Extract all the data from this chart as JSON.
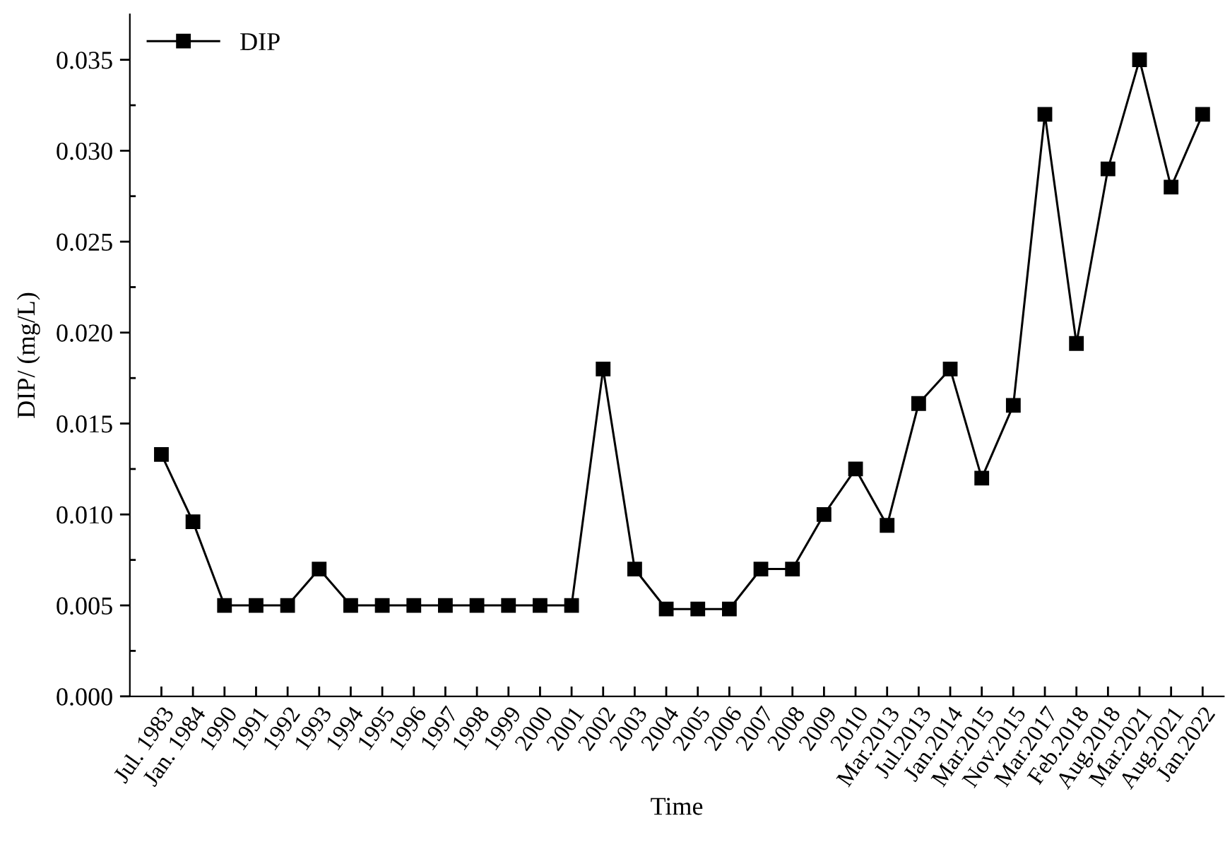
{
  "chart_data": {
    "type": "line",
    "xlabel": "Time",
    "ylabel": "DIP/ (mg/L)",
    "categories": [
      "Jul. 1983",
      "Jan. 1984",
      "1990",
      "1991",
      "1992",
      "1993",
      "1994",
      "1995",
      "1996",
      "1997",
      "1998",
      "1999",
      "2000",
      "2001",
      "2002",
      "2003",
      "2004",
      "2005",
      "2006",
      "2007",
      "2008",
      "2009",
      "2010",
      "Mar.2013",
      "Jul.2013",
      "Jan.2014",
      "Mar.2015",
      "Nov.2015",
      "Mar.2017",
      "Feb.2018",
      "Aug.2018",
      "Mar.2021",
      "Aug.2021",
      "Jan.2022"
    ],
    "series": [
      {
        "name": "DIP",
        "color": "#000000",
        "values": [
          0.0133,
          0.0096,
          0.005,
          0.005,
          0.005,
          0.007,
          0.005,
          0.005,
          0.005,
          0.005,
          0.005,
          0.005,
          0.005,
          0.005,
          0.018,
          0.007,
          0.0048,
          0.0048,
          0.0048,
          0.007,
          0.007,
          0.01,
          0.0125,
          0.0094,
          0.0161,
          0.018,
          0.012,
          0.016,
          0.032,
          0.0194,
          0.029,
          0.035,
          0.028,
          0.032
        ]
      }
    ],
    "ylim": [
      0,
      0.0375
    ],
    "yticks": [
      {
        "value": 0,
        "label": "0.000"
      },
      {
        "value": 0.0025,
        "label": null
      },
      {
        "value": 0.005,
        "label": "0.005"
      },
      {
        "value": 0.0075,
        "label": null
      },
      {
        "value": 0.01,
        "label": "0.010"
      },
      {
        "value": 0.0125,
        "label": null
      },
      {
        "value": 0.015,
        "label": "0.015"
      },
      {
        "value": 0.0175,
        "label": null
      },
      {
        "value": 0.02,
        "label": "0.020"
      },
      {
        "value": 0.0225,
        "label": null
      },
      {
        "value": 0.025,
        "label": "0.025"
      },
      {
        "value": 0.0275,
        "label": null
      },
      {
        "value": 0.03,
        "label": "0.030"
      },
      {
        "value": 0.0325,
        "label": null
      },
      {
        "value": 0.035,
        "label": "0.035"
      }
    ],
    "marker": "square",
    "line_style": "solid",
    "legend": "top left",
    "grid": false
  }
}
